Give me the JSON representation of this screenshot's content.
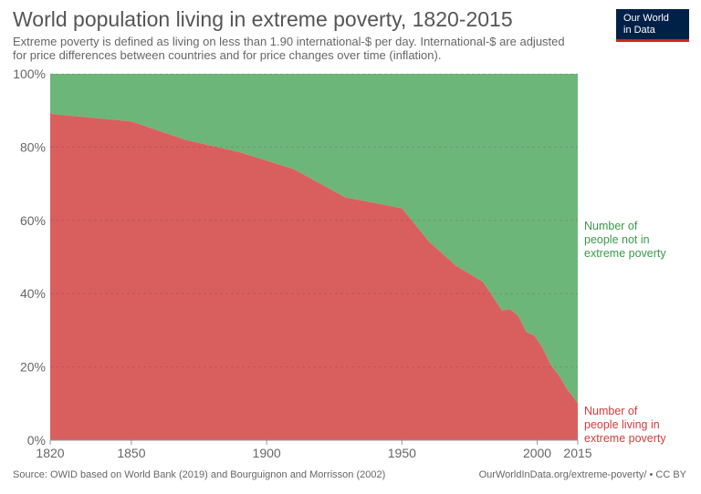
{
  "title": "World population living in extreme poverty, 1820-2015",
  "subtitle": "Extreme poverty is defined as living on less than 1.90 international-$ per day. International-$ are adjusted for price differences between countries and for price changes over time (inflation).",
  "logo": {
    "line1": "Our World",
    "line2": "in Data"
  },
  "footer": {
    "source": "Source: OWID based on World Bank (2019) and Bourguignon and Morrisson (2002)",
    "credit": "OurWorldInData.org/extreme-poverty/ • CC BY"
  },
  "chart_data": {
    "type": "area",
    "stacked": true,
    "xlim": [
      1820,
      2015
    ],
    "ylim": [
      0,
      100
    ],
    "x_ticks": [
      "1820",
      "1850",
      "1900",
      "1950",
      "2000",
      "2015"
    ],
    "y_ticks": [
      "0%",
      "20%",
      "40%",
      "60%",
      "80%",
      "100%"
    ],
    "grid": "horizontal dashed",
    "x": [
      1820,
      1850,
      1870,
      1890,
      1910,
      1929,
      1950,
      1960,
      1970,
      1980,
      1987,
      1990,
      1993,
      1996,
      1999,
      2002,
      2005,
      2008,
      2011,
      2014,
      2015
    ],
    "series": [
      {
        "name": "Number of people living in extreme poverty",
        "color": "#d95f5f",
        "label": [
          "Number of",
          "people living in",
          "extreme poverty"
        ],
        "values": [
          89.1,
          87.0,
          82.0,
          78.6,
          74.0,
          66.3,
          63.3,
          54.2,
          47.6,
          43.2,
          35.4,
          35.8,
          33.9,
          29.5,
          28.5,
          25.2,
          20.6,
          17.7,
          14.0,
          11.1,
          9.9
        ]
      },
      {
        "name": "Number of people not in extreme poverty",
        "color": "#6db679",
        "label": [
          "Number of",
          "people not in",
          "extreme poverty"
        ],
        "values": [
          10.9,
          13.0,
          18.0,
          21.4,
          26.0,
          33.7,
          36.7,
          45.8,
          52.4,
          56.8,
          64.6,
          64.2,
          66.1,
          70.5,
          71.5,
          74.8,
          79.4,
          82.3,
          86.0,
          88.9,
          90.1
        ]
      }
    ],
    "legend": "right, inline labels"
  }
}
